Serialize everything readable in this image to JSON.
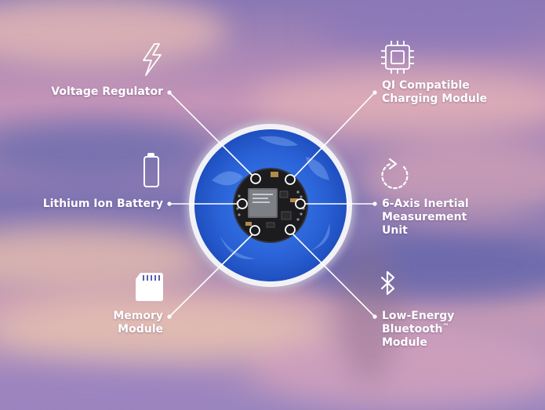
{
  "colors": {
    "sky_blue": "#6f6fb0",
    "sky_pink": "#d9a7b3",
    "sky_peach": "#e4bfb0",
    "device_blue": "#2a66d8",
    "device_rim": "#f1f1f5",
    "pcb": "#1b1b1d",
    "label": "#ffffff"
  },
  "diagram": {
    "components": [
      {
        "id": "voltage-regulator",
        "icon": "lightning-bolt-icon",
        "lines": [
          "Voltage Regulator"
        ],
        "side": "left"
      },
      {
        "id": "lithium-ion-battery",
        "icon": "battery-icon",
        "lines": [
          "Lithium Ion Battery"
        ],
        "side": "left"
      },
      {
        "id": "memory-module",
        "icon": "sd-card-icon",
        "lines": [
          "Memory",
          "Module"
        ],
        "side": "left"
      },
      {
        "id": "qi-charging-module",
        "icon": "chip-icon",
        "lines": [
          "QI Compatible",
          "Charging Module"
        ],
        "side": "right"
      },
      {
        "id": "imu",
        "icon": "rotate-arrow-icon",
        "lines": [
          "6-Axis Inertial",
          "Measurement",
          "Unit"
        ],
        "side": "right"
      },
      {
        "id": "ble-module",
        "icon": "bluetooth-icon",
        "lines": [
          "Low-Energy",
          "Bluetooth",
          "Module"
        ],
        "side": "right",
        "trademark": "™"
      }
    ]
  }
}
